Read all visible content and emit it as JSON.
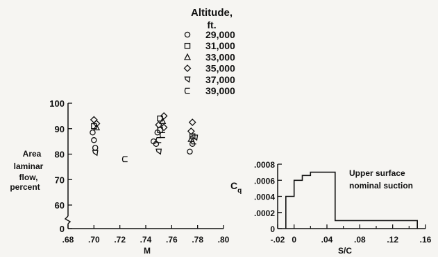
{
  "legend": {
    "title_line1": "Altitude,",
    "title_line2": "ft.",
    "entries": [
      {
        "marker": "circle",
        "label": "29,000"
      },
      {
        "marker": "square",
        "label": "31,000"
      },
      {
        "marker": "triangle",
        "label": "33,000"
      },
      {
        "marker": "diamond",
        "label": "35,000"
      },
      {
        "marker": "half-flag-down",
        "label": "37,000"
      },
      {
        "marker": "half-flag-up",
        "label": "39,000"
      }
    ]
  },
  "chart_data": [
    {
      "type": "scatter",
      "ylabel_lines": [
        "Area",
        "laminar",
        "flow,",
        "percent"
      ],
      "xlabel": "M",
      "xlim": [
        0.68,
        0.8
      ],
      "ylim": [
        0,
        100
      ],
      "axis_break": true,
      "x_ticks": [
        ".68",
        ".70",
        ".72",
        ".74",
        ".76",
        ".78",
        ".80"
      ],
      "x_tick_values": [
        0.68,
        0.7,
        0.72,
        0.74,
        0.76,
        0.78,
        0.8
      ],
      "y_ticks": [
        "0",
        "60",
        "70",
        "80",
        "90",
        "100"
      ],
      "y_tick_values": [
        0,
        60,
        70,
        80,
        90,
        100
      ],
      "points": [
        {
          "x": 0.7,
          "y": 93.5,
          "marker": "diamond"
        },
        {
          "x": 0.702,
          "y": 92.0,
          "marker": "diamond"
        },
        {
          "x": 0.7,
          "y": 91.0,
          "marker": "square"
        },
        {
          "x": 0.702,
          "y": 90.5,
          "marker": "triangle"
        },
        {
          "x": 0.699,
          "y": 88.5,
          "marker": "circle"
        },
        {
          "x": 0.7,
          "y": 85.5,
          "marker": "circle"
        },
        {
          "x": 0.701,
          "y": 82.5,
          "marker": "circle"
        },
        {
          "x": 0.701,
          "y": 80.5,
          "marker": "half-flag-down"
        },
        {
          "x": 0.724,
          "y": 78.0,
          "marker": "half-flag-up"
        },
        {
          "x": 0.746,
          "y": 85.0,
          "marker": "circle"
        },
        {
          "x": 0.748,
          "y": 84.0,
          "marker": "circle"
        },
        {
          "x": 0.75,
          "y": 85.5,
          "marker": "half-flag-up"
        },
        {
          "x": 0.751,
          "y": 94.0,
          "marker": "square"
        },
        {
          "x": 0.754,
          "y": 95.0,
          "marker": "diamond"
        },
        {
          "x": 0.753,
          "y": 93.0,
          "marker": "triangle"
        },
        {
          "x": 0.75,
          "y": 91.5,
          "marker": "diamond"
        },
        {
          "x": 0.754,
          "y": 90.5,
          "marker": "diamond"
        },
        {
          "x": 0.751,
          "y": 89.5,
          "marker": "square"
        },
        {
          "x": 0.749,
          "y": 88.5,
          "marker": "circle"
        },
        {
          "x": 0.753,
          "y": 87.5,
          "marker": "half-flag-up"
        },
        {
          "x": 0.75,
          "y": 81.0,
          "marker": "half-flag-down"
        },
        {
          "x": 0.776,
          "y": 92.5,
          "marker": "diamond"
        },
        {
          "x": 0.775,
          "y": 89.0,
          "marker": "diamond"
        },
        {
          "x": 0.776,
          "y": 87.0,
          "marker": "square"
        },
        {
          "x": 0.778,
          "y": 86.5,
          "marker": "half-flag-down"
        },
        {
          "x": 0.775,
          "y": 86.0,
          "marker": "triangle"
        },
        {
          "x": 0.776,
          "y": 84.0,
          "marker": "circle"
        },
        {
          "x": 0.777,
          "y": 85.0,
          "marker": "half-flag-up"
        },
        {
          "x": 0.774,
          "y": 81.0,
          "marker": "circle"
        }
      ]
    },
    {
      "type": "line",
      "step": true,
      "ylabel": "C",
      "ylabel_sub": "q",
      "xlabel": "S/C",
      "annotation_lines": [
        "Upper surface",
        "nominal suction"
      ],
      "xlim": [
        -0.02,
        0.16
      ],
      "ylim": [
        0,
        0.0008
      ],
      "x_ticks": [
        "-.02",
        "0",
        ".04",
        ".08",
        ".12",
        ".16"
      ],
      "x_tick_values": [
        -0.02,
        0,
        0.04,
        0.08,
        0.12,
        0.16
      ],
      "x_minor": [
        0.02,
        0.06,
        0.1,
        0.14
      ],
      "y_ticks": [
        "0",
        ".0002",
        ".0004",
        ".0006",
        ".0008"
      ],
      "y_tick_values": [
        0,
        0.0002,
        0.0004,
        0.0006,
        0.0008
      ],
      "x": [
        -0.01,
        0.0,
        0.0,
        0.01,
        0.01,
        0.02,
        0.02,
        0.05,
        0.05,
        0.15
      ],
      "y": [
        0.0004,
        0.0004,
        0.0006,
        0.0006,
        0.00066,
        0.00066,
        0.0007,
        0.0007,
        0.0001,
        0.0001
      ]
    }
  ]
}
